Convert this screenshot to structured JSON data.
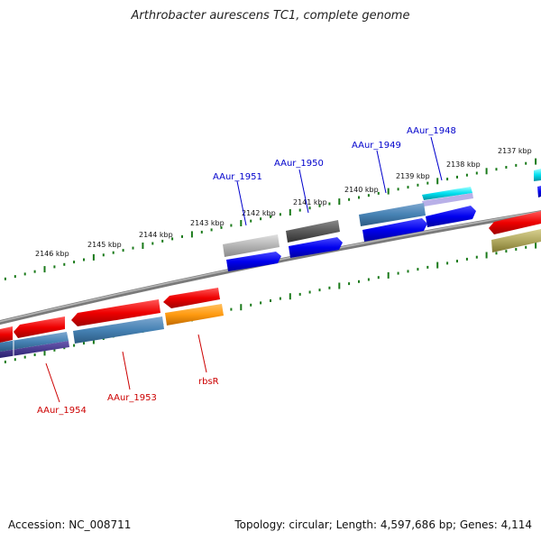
{
  "title": "Arthrobacter aurescens TC1, complete genome",
  "footer": {
    "accession": "Accession: NC_008711",
    "summary": "Topology: circular; Length: 4,597,686 bp; Genes: 4,114"
  },
  "ruler_ticks": [
    "2137 kbp",
    "2138 kbp",
    "2139 kbp",
    "2140 kbp",
    "2141 kbp",
    "2142 kbp",
    "2143 kbp",
    "2144 kbp",
    "2145 kbp",
    "2146 kbp"
  ],
  "gene_labels_forward": [
    "AAur_1948",
    "AAur_1949",
    "AAur_1950",
    "AAur_1951"
  ],
  "gene_labels_reverse": [
    "rbsR",
    "AAur_1953",
    "AAur_1954"
  ],
  "colors": {
    "cds_forward": "#0000ee",
    "cds_reverse": "#ee0000",
    "backbone": "#808080",
    "ruler": "#1a7a1a",
    "label_forward": "#0000cc",
    "label_reverse": "#cc0000"
  }
}
